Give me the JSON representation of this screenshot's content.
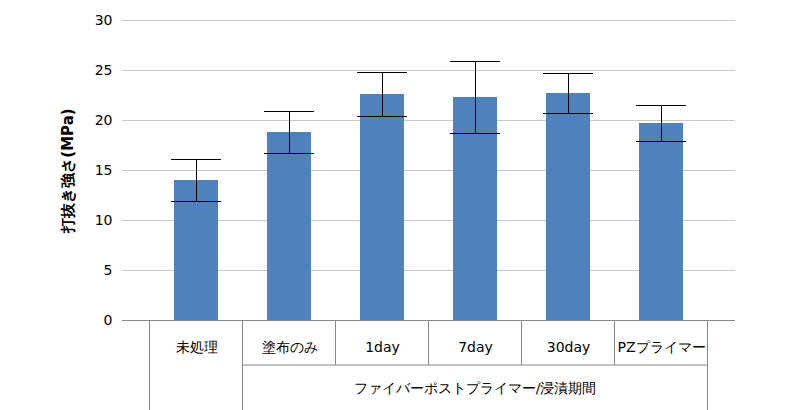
{
  "chart_data": {
    "type": "bar",
    "ylabel": "打抜き強さ(MPa)",
    "categories": [
      "未処理",
      "塗布のみ",
      "1day",
      "7day",
      "30day",
      "PZプライマー"
    ],
    "values": [
      14.0,
      18.8,
      22.6,
      22.3,
      22.7,
      19.7
    ],
    "errors": [
      2.1,
      2.1,
      2.2,
      3.6,
      2.0,
      1.8
    ],
    "color": "#4f81bd",
    "ylim": [
      0,
      30
    ],
    "yticks": [
      0,
      5,
      10,
      15,
      20,
      25,
      30
    ],
    "grid": true,
    "annotations": [
      {
        "text": "ファイバーポストプライマー/浸漬期間",
        "categories": [
          "塗布のみ",
          "1day",
          "7day",
          "30day",
          "PZプライマー"
        ]
      }
    ]
  }
}
